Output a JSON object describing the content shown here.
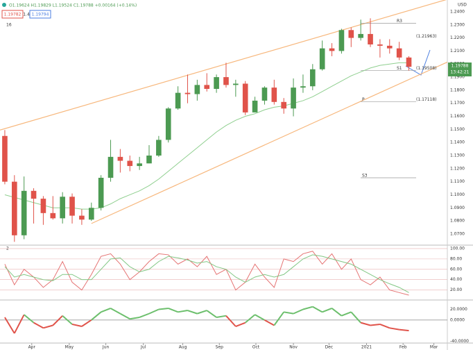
{
  "header": {
    "ohlc": "O1.19624 H1.19829 L1.19524 C1.19788 +0.00164 (+0.14%)",
    "box1": "1.19782",
    "box2": "1.4",
    "box3": "1.19794",
    "pane1_label": "16",
    "pane2_label": "2",
    "currency": "USD",
    "last_price": "1.19788",
    "countdown": "13:42:21"
  },
  "chart_data": [
    {
      "type": "candlestick",
      "open": [
        1.145,
        1.11,
        1.069,
        1.103,
        1.097,
        1.086,
        1.082,
        1.0985,
        1.084,
        1.081,
        1.09,
        1.113,
        1.129,
        1.126,
        1.122,
        1.124,
        1.13,
        1.142,
        1.166,
        1.178,
        1.177,
        1.184,
        1.181,
        1.19,
        1.184,
        1.185,
        1.163,
        1.172,
        1.182,
        1.171,
        1.166,
        1.182,
        1.183,
        1.196,
        1.212,
        1.21,
        1.226,
        1.22,
        1.223,
        1.215,
        1.214,
        1.212,
        1.205
      ],
      "high": [
        1.1495,
        1.115,
        1.114,
        1.105,
        1.099,
        1.099,
        1.102,
        1.101,
        1.089,
        1.094,
        1.115,
        1.142,
        1.135,
        1.13,
        1.129,
        1.138,
        1.145,
        1.167,
        1.183,
        1.192,
        1.188,
        1.193,
        1.192,
        1.201,
        1.188,
        1.187,
        1.175,
        1.183,
        1.188,
        1.174,
        1.189,
        1.192,
        1.2,
        1.218,
        1.216,
        1.227,
        1.228,
        1.234,
        1.235,
        1.219,
        1.219,
        1.217,
        1.206
      ],
      "low": [
        1.108,
        1.064,
        1.066,
        1.078,
        1.077,
        1.081,
        1.078,
        1.078,
        1.077,
        1.08,
        1.088,
        1.11,
        1.117,
        1.118,
        1.119,
        1.124,
        1.129,
        1.14,
        1.165,
        1.17,
        1.172,
        1.179,
        1.178,
        1.182,
        1.175,
        1.161,
        1.163,
        1.169,
        1.169,
        1.162,
        1.16,
        1.178,
        1.18,
        1.195,
        1.206,
        1.208,
        1.213,
        1.218,
        1.213,
        1.205,
        1.208,
        1.203,
        1.195
      ],
      "close": [
        1.11,
        1.069,
        1.103,
        1.097,
        1.086,
        1.082,
        1.0985,
        1.084,
        1.081,
        1.09,
        1.113,
        1.129,
        1.126,
        1.122,
        1.124,
        1.13,
        1.142,
        1.166,
        1.178,
        1.177,
        1.184,
        1.181,
        1.19,
        1.184,
        1.185,
        1.163,
        1.172,
        1.182,
        1.171,
        1.166,
        1.182,
        1.183,
        1.196,
        1.212,
        1.21,
        1.226,
        1.22,
        1.223,
        1.215,
        1.214,
        1.212,
        1.205,
        1.1979
      ],
      "up_color": "#4c9a52",
      "down_color": "#e0534a",
      "ma": {
        "color": "#8fcf8f",
        "values": [
          1.1,
          1.098,
          1.096,
          1.094,
          1.092,
          1.09,
          1.09,
          1.09,
          1.089,
          1.089,
          1.09,
          1.093,
          1.097,
          1.1,
          1.103,
          1.107,
          1.112,
          1.118,
          1.124,
          1.13,
          1.136,
          1.142,
          1.148,
          1.153,
          1.157,
          1.16,
          1.162,
          1.165,
          1.167,
          1.168,
          1.17,
          1.172,
          1.175,
          1.179,
          1.183,
          1.187,
          1.191,
          1.194,
          1.197,
          1.199,
          1.2,
          1.201,
          1.201
        ]
      },
      "channel": {
        "color": "#f7b77c",
        "upper": {
          "x": [
            -0.5,
            46
          ],
          "y": [
            1.1495,
            1.2495
          ]
        },
        "lower": {
          "x": [
            9,
            46
          ],
          "y": [
            1.078,
            1.2015
          ]
        }
      },
      "levels": [
        {
          "label": "R3",
          "value": 1.2312
        },
        {
          "label": "(1.21963)",
          "value": 1.21963
        },
        {
          "label": "S1",
          "value": 1.1951
        },
        {
          "label": "(1.19508)",
          "value": 1.19508
        },
        {
          "label": "P",
          "value": 1.1712
        },
        {
          "label": "(1.17118)",
          "value": 1.17118
        },
        {
          "label": "S3",
          "value": 1.113
        }
      ],
      "xlim": [
        -0.5,
        46
      ],
      "xticks": [
        {
          "value": 2.8,
          "label": "Apr"
        },
        {
          "value": 6.7,
          "label": "May"
        },
        {
          "value": 10.5,
          "label": "Jun"
        },
        {
          "value": 14.4,
          "label": "Jul"
        },
        {
          "value": 18.5,
          "label": "Aug"
        },
        {
          "value": 22.3,
          "label": "Sep"
        },
        {
          "value": 26.1,
          "label": "Oct"
        },
        {
          "value": 30,
          "label": "Nov"
        },
        {
          "value": 33.7,
          "label": "Dec"
        },
        {
          "value": 37.6,
          "label": "2021"
        },
        {
          "value": 41.4,
          "label": "Feb"
        },
        {
          "value": 44.6,
          "label": "Mar"
        }
      ],
      "ylim": [
        1.062,
        1.249
      ],
      "yticks": [
        {
          "value": 1.07,
          "label": "1.0700"
        },
        {
          "value": 1.08,
          "label": "1.0800"
        },
        {
          "value": 1.09,
          "label": "1.0900"
        },
        {
          "value": 1.1,
          "label": "1.1000"
        },
        {
          "value": 1.11,
          "label": "1.1100"
        },
        {
          "value": 1.12,
          "label": "1.1200"
        },
        {
          "value": 1.13,
          "label": "1.1300"
        },
        {
          "value": 1.14,
          "label": "1.1400"
        },
        {
          "value": 1.15,
          "label": "1.1500"
        },
        {
          "value": 1.16,
          "label": "1.1600"
        },
        {
          "value": 1.17,
          "label": "1.1700"
        },
        {
          "value": 1.18,
          "label": "1.1800"
        },
        {
          "value": 1.19,
          "label": "1.1900"
        },
        {
          "value": 1.2,
          "label": "1.2000"
        },
        {
          "value": 1.21,
          "label": "1.2100"
        },
        {
          "value": 1.22,
          "label": "1.2200"
        },
        {
          "value": 1.23,
          "label": "1.2300"
        },
        {
          "value": 1.24,
          "label": "1.2400"
        }
      ]
    },
    {
      "type": "line",
      "series": [
        {
          "color": "#e57373",
          "values": [
            70,
            30,
            60,
            45,
            25,
            40,
            75,
            35,
            20,
            50,
            85,
            90,
            70,
            40,
            55,
            75,
            90,
            88,
            70,
            80,
            65,
            85,
            50,
            60,
            20,
            35,
            70,
            45,
            25,
            80,
            75,
            90,
            95,
            70,
            90,
            60,
            80,
            40,
            30,
            45,
            20,
            15,
            10
          ]
        },
        {
          "color": "#81c784",
          "values": [
            65,
            45,
            50,
            45,
            40,
            38,
            50,
            50,
            40,
            40,
            60,
            80,
            82,
            65,
            55,
            60,
            75,
            85,
            82,
            78,
            72,
            75,
            65,
            60,
            45,
            35,
            45,
            50,
            45,
            50,
            65,
            80,
            88,
            85,
            80,
            75,
            70,
            60,
            50,
            40,
            32,
            25,
            15
          ]
        }
      ],
      "ylim": [
        2,
        104
      ],
      "yticks": [
        {
          "value": 100,
          "label": "100.00"
        },
        {
          "value": 80,
          "label": "80.00"
        },
        {
          "value": 60,
          "label": "60.00"
        },
        {
          "value": 40,
          "label": "40.00"
        },
        {
          "value": 20,
          "label": "20.00"
        }
      ]
    },
    {
      "type": "signline",
      "pos_color": "#6cbf6c",
      "neg_color": "#e0534a",
      "values": [
        5,
        -25,
        10,
        -5,
        -15,
        -10,
        8,
        -8,
        -12,
        0,
        15,
        22,
        12,
        2,
        5,
        12,
        20,
        22,
        15,
        18,
        12,
        18,
        5,
        8,
        -12,
        -5,
        10,
        0,
        -10,
        15,
        12,
        20,
        25,
        15,
        22,
        8,
        15,
        -5,
        -10,
        -8,
        -15,
        -18,
        -20
      ],
      "ylim": [
        -42,
        35
      ],
      "yticks": [
        {
          "value": 20,
          "label": "20.0000"
        },
        {
          "value": 0,
          "label": "0.0000"
        },
        {
          "value": -40,
          "label": "-40.0000"
        }
      ]
    }
  ]
}
